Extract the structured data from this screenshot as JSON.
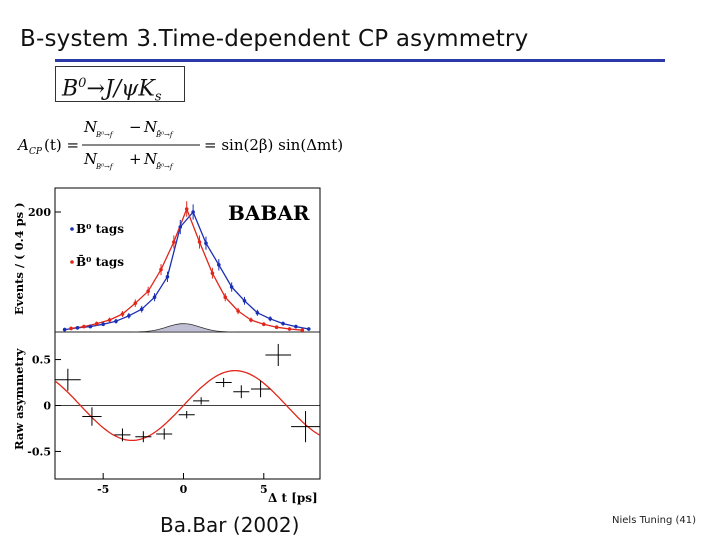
{
  "slide": {
    "title": "B-system 3.Time-dependent CP asymmetry",
    "decay_channel": {
      "main": "B",
      "sup": "0",
      "arrow": "→J/ψK",
      "sub": "s"
    },
    "caption": "Ba.Bar (2002)",
    "footer": "Niels Tuning (41)",
    "accent_color": "#2b3aa8"
  },
  "formula": {
    "lhs": "A",
    "lhs_sub": "CP",
    "lhs_arg": "(t) =",
    "num_a": "N",
    "num_a_sub": "B⁰→f",
    "minus": "−",
    "num_b": "N",
    "num_b_sub": "B̄⁰→f",
    "den_a": "N",
    "den_a_sub": "B⁰→f",
    "plus": "+",
    "den_b": "N",
    "den_b_sub": "B̄⁰→f",
    "rhs": "= sin(2β) sin(Δmt)"
  },
  "chart_data": [
    {
      "type": "scatter",
      "panel": "top",
      "brand": "BABAR",
      "ylabel": "Events / ( 0.4 ps )",
      "xlim": [
        -8,
        8.5
      ],
      "ylim": [
        0,
        240
      ],
      "yticks": [
        200
      ],
      "legend": [
        "B⁰ tags",
        "B̄⁰ tags"
      ],
      "colors": {
        "B0": "#1b2fb5",
        "B0bar": "#e0261a",
        "background": "#bfbfd6"
      },
      "series": [
        {
          "name": "B⁰ tags",
          "x": [
            -7.4,
            -6.6,
            -5.8,
            -5.0,
            -4.2,
            -3.4,
            -2.6,
            -1.8,
            -1.0,
            -0.2,
            0.6,
            1.4,
            2.2,
            3.0,
            3.8,
            4.6,
            5.4,
            6.2,
            7.0,
            7.8
          ],
          "y": [
            4,
            7,
            9,
            13,
            18,
            27,
            38,
            58,
            92,
            175,
            200,
            148,
            112,
            75,
            52,
            32,
            22,
            14,
            9,
            5
          ]
        },
        {
          "name": "B̄⁰ tags",
          "x": [
            -7.0,
            -6.2,
            -5.4,
            -4.6,
            -3.8,
            -3.0,
            -2.2,
            -1.4,
            -0.6,
            0.2,
            1.0,
            1.8,
            2.6,
            3.4,
            4.2,
            5.0,
            5.8,
            6.6,
            7.4
          ],
          "y": [
            6,
            9,
            14,
            20,
            30,
            48,
            68,
            104,
            150,
            205,
            150,
            98,
            58,
            35,
            20,
            13,
            8,
            5,
            3
          ]
        }
      ],
      "background_peak": 14
    },
    {
      "type": "scatter",
      "panel": "bottom",
      "ylabel": "Raw asymmetry",
      "xlabel": "Δ t [ps]",
      "xlim": [
        -8,
        8.5
      ],
      "ylim": [
        -0.8,
        0.8
      ],
      "xticks": [
        -5,
        0,
        5
      ],
      "yticks": [
        0.5,
        0,
        -0.5
      ],
      "ytick_labels": [
        "0.5",
        "0",
        "-0.5"
      ],
      "series": [
        {
          "name": "asymmetry",
          "x": [
            -7.2,
            -5.7,
            -3.8,
            -2.5,
            -1.2,
            0.2,
            1.1,
            2.5,
            3.6,
            4.8,
            5.9,
            7.6
          ],
          "y": [
            0.28,
            -0.12,
            -0.32,
            -0.34,
            -0.31,
            -0.1,
            0.05,
            0.25,
            0.15,
            0.18,
            0.55,
            -0.23
          ],
          "xerr": [
            0.8,
            0.6,
            0.5,
            0.5,
            0.5,
            0.5,
            0.5,
            0.5,
            0.5,
            0.6,
            0.8,
            0.9
          ],
          "yerr": [
            0.12,
            0.1,
            0.07,
            0.06,
            0.06,
            0.04,
            0.04,
            0.05,
            0.07,
            0.09,
            0.12,
            0.17
          ]
        }
      ],
      "fit": "0.38·sin(0.49·Δt)"
    }
  ]
}
